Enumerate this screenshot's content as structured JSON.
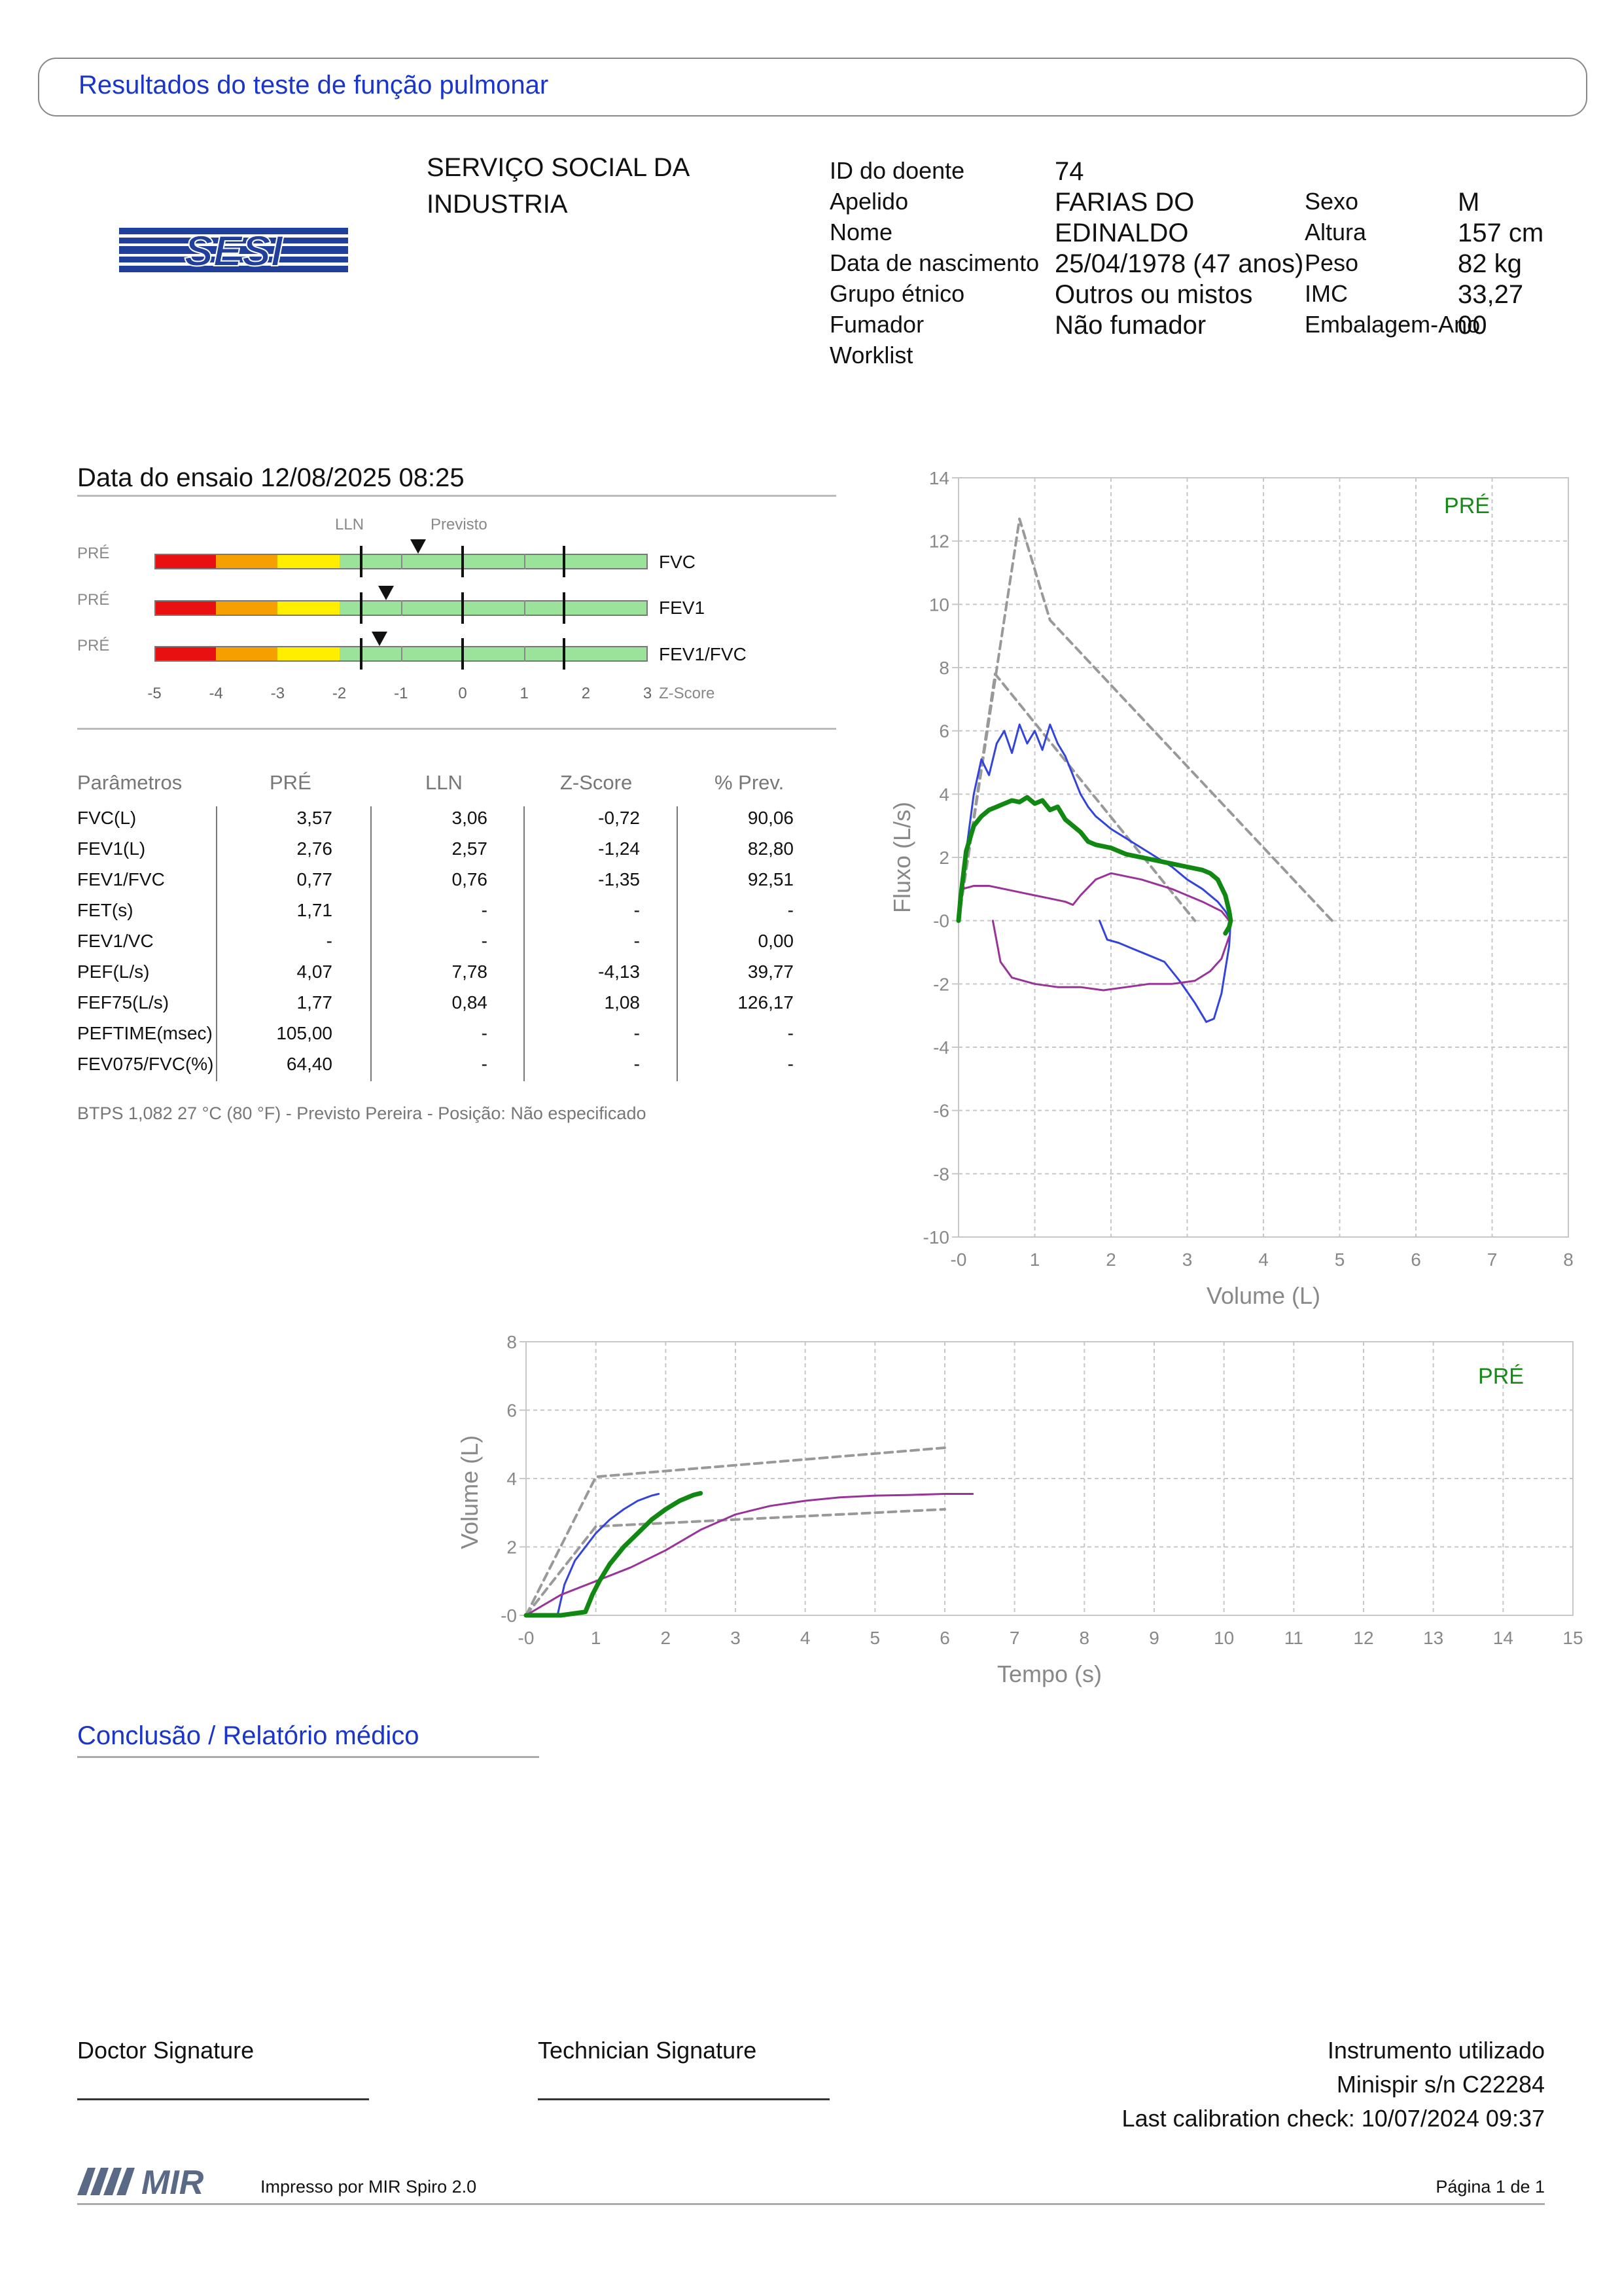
{
  "header": {
    "title": "Resultados do teste de função pulmonar"
  },
  "organization": {
    "logo_text": "SESI",
    "name_line1": "SERVIÇO SOCIAL DA",
    "name_line2": "INDUSTRIA"
  },
  "patient": {
    "id_label": "ID do doente",
    "id_value": "74",
    "surname_label": "Apelido",
    "surname_value": "FARIAS DO",
    "name_label": "Nome",
    "name_value": "EDINALDO",
    "dob_label": "Data de nascimento",
    "dob_value": "25/04/1978 (47 anos)",
    "ethnic_label": "Grupo étnico",
    "ethnic_value": "Outros ou mistos",
    "smoker_label": "Fumador",
    "smoker_value": "Não fumador",
    "worklist_label": "Worklist",
    "sex_label": "Sexo",
    "sex_value": "M",
    "height_label": "Altura",
    "height_value": "157 cm",
    "weight_label": "Peso",
    "weight_value": "82 kg",
    "bmi_label": "IMC",
    "bmi_value": "33,27",
    "pack_label": "Embalagem-Ano",
    "pack_value": "00"
  },
  "test": {
    "date_text": "Data do ensaio 12/08/2025 08:25"
  },
  "zscore": {
    "lln_label": "LLN",
    "predicted_label": "Previsto",
    "axis_label": "Z-Score",
    "ticks": [
      "-5",
      "-4",
      "-3",
      "-2",
      "-1",
      "0",
      "1",
      "2",
      "3"
    ],
    "rows": [
      {
        "tag": "PRÉ",
        "param": "FVC",
        "z": -0.72
      },
      {
        "tag": "PRÉ",
        "param": "FEV1",
        "z": -1.24
      },
      {
        "tag": "PRÉ",
        "param": "FEV1/FVC",
        "z": -1.35
      }
    ]
  },
  "table": {
    "headers": [
      "Parâmetros",
      "PRÉ",
      "LLN",
      "Z-Score",
      "% Prev."
    ],
    "rows": [
      [
        "FVC(L)",
        "3,57",
        "3,06",
        "-0,72",
        "90,06"
      ],
      [
        "FEV1(L)",
        "2,76",
        "2,57",
        "-1,24",
        "82,80"
      ],
      [
        "FEV1/FVC",
        "0,77",
        "0,76",
        "-1,35",
        "92,51"
      ],
      [
        "FET(s)",
        "1,71",
        "-",
        "-",
        "-"
      ],
      [
        "FEV1/VC",
        "-",
        "-",
        "-",
        "0,00"
      ],
      [
        "PEF(L/s)",
        "4,07",
        "7,78",
        "-4,13",
        "39,77"
      ],
      [
        "FEF75(L/s)",
        "1,77",
        "0,84",
        "1,08",
        "126,17"
      ],
      [
        "PEFTIME(msec)",
        "105,00",
        "-",
        "-",
        "-"
      ],
      [
        "FEV075/FVC(%)",
        "64,40",
        "-",
        "-",
        "-"
      ]
    ],
    "footnote": "BTPS 1,082 27 °C (80 °F) - Previsto Pereira - Posição: Não especificado"
  },
  "chart_data": [
    {
      "type": "line",
      "xlabel": "Volume (L)",
      "ylabel": "Fluxo (L/s)",
      "xlim": [
        0,
        8
      ],
      "ylim": [
        -10,
        14
      ],
      "xticks": [
        "-0",
        "1",
        "2",
        "3",
        "4",
        "5",
        "6",
        "7",
        "8"
      ],
      "yticks": [
        "14",
        "12",
        "10",
        "8",
        "6",
        "4",
        "2",
        "-0",
        "-2",
        "-4",
        "-6",
        "-8",
        "-10"
      ],
      "legend": "PRÉ",
      "grid": true,
      "series": [
        {
          "color": "#999999",
          "style": "dashed",
          "x": [
            0,
            0.8,
            1.2,
            4.9
          ],
          "y": [
            0,
            12.7,
            9.5,
            0
          ]
        },
        {
          "color": "#999999",
          "style": "dashed",
          "x": [
            0,
            0.48,
            3.1
          ],
          "y": [
            0,
            7.8,
            0
          ]
        },
        {
          "color": "#3344dd",
          "style": "solid",
          "x": [
            0,
            0.1,
            0.2,
            0.3,
            0.4,
            0.5,
            0.6,
            0.7,
            0.8,
            0.9,
            1.0,
            1.1,
            1.2,
            1.3,
            1.4,
            1.5,
            1.6,
            1.7,
            1.8,
            1.9,
            2.0,
            2.2,
            2.4,
            2.6,
            2.8,
            3.0,
            3.2,
            3.4,
            3.5,
            3.57
          ],
          "y": [
            0,
            2.2,
            4.0,
            5.1,
            4.6,
            5.6,
            6.0,
            5.3,
            6.2,
            5.6,
            6.0,
            5.4,
            6.2,
            5.6,
            5.2,
            4.6,
            4.0,
            3.6,
            3.3,
            3.1,
            2.9,
            2.6,
            2.3,
            2.0,
            1.7,
            1.3,
            1.0,
            0.6,
            0.3,
            0
          ]
        },
        {
          "color": "#3344dd",
          "style": "solid",
          "x": [
            1.85,
            1.95,
            2.1,
            2.3,
            2.5,
            2.7,
            2.9,
            3.1,
            3.25,
            3.35,
            3.45,
            3.55,
            3.57
          ],
          "y": [
            0,
            -0.6,
            -0.7,
            -0.9,
            -1.1,
            -1.3,
            -1.9,
            -2.6,
            -3.2,
            -3.1,
            -2.3,
            -0.8,
            0
          ]
        },
        {
          "color": "#993399",
          "style": "solid",
          "x": [
            0,
            0.05,
            0.2,
            0.4,
            0.6,
            0.8,
            1.0,
            1.2,
            1.4,
            1.5,
            1.6,
            1.8,
            2.0,
            2.4,
            2.8,
            3.2,
            3.45,
            3.55
          ],
          "y": [
            0,
            1.0,
            1.1,
            1.1,
            1.0,
            0.9,
            0.8,
            0.7,
            0.6,
            0.5,
            0.8,
            1.3,
            1.5,
            1.3,
            1.0,
            0.6,
            0.3,
            0
          ]
        },
        {
          "color": "#993399",
          "style": "solid",
          "x": [
            0.45,
            0.55,
            0.7,
            1.0,
            1.3,
            1.6,
            1.9,
            2.2,
            2.5,
            2.8,
            3.1,
            3.3,
            3.45,
            3.55
          ],
          "y": [
            0,
            -1.3,
            -1.8,
            -2.0,
            -2.1,
            -2.1,
            -2.2,
            -2.1,
            -2.0,
            -2.0,
            -1.9,
            -1.6,
            -1.2,
            -0.5
          ]
        },
        {
          "color": "#118811",
          "style": "bold",
          "x": [
            0,
            0.03,
            0.1,
            0.2,
            0.3,
            0.4,
            0.5,
            0.6,
            0.7,
            0.8,
            0.9,
            1.0,
            1.1,
            1.2,
            1.3,
            1.4,
            1.5,
            1.6,
            1.7,
            1.8,
            2.0,
            2.2,
            2.4,
            2.6,
            2.8,
            3.0,
            3.2,
            3.3,
            3.4,
            3.5,
            3.55,
            3.57,
            3.55,
            3.5
          ],
          "y": [
            0,
            0.8,
            2.2,
            3.0,
            3.3,
            3.5,
            3.6,
            3.7,
            3.8,
            3.75,
            3.9,
            3.7,
            3.8,
            3.5,
            3.6,
            3.2,
            3.0,
            2.8,
            2.5,
            2.4,
            2.3,
            2.1,
            2.0,
            1.9,
            1.8,
            1.7,
            1.6,
            1.5,
            1.3,
            0.8,
            0.3,
            0,
            -0.2,
            -0.4
          ]
        }
      ]
    },
    {
      "type": "line",
      "xlabel": "Tempo (s)",
      "ylabel": "Volume (L)",
      "xlim": [
        0,
        15
      ],
      "ylim": [
        0,
        8
      ],
      "xticks": [
        "-0",
        "1",
        "2",
        "3",
        "4",
        "5",
        "6",
        "7",
        "8",
        "9",
        "10",
        "11",
        "12",
        "13",
        "14",
        "15"
      ],
      "yticks": [
        "8",
        "6",
        "4",
        "2",
        "-0"
      ],
      "legend": "PRÉ",
      "grid": true,
      "series": [
        {
          "color": "#999999",
          "style": "dashed",
          "x": [
            0,
            1.0,
            6.0
          ],
          "y": [
            0,
            4.05,
            4.9
          ]
        },
        {
          "color": "#999999",
          "style": "dashed",
          "x": [
            0,
            1.0,
            6.0
          ],
          "y": [
            0,
            2.6,
            3.1
          ]
        },
        {
          "color": "#3344dd",
          "style": "solid",
          "x": [
            0.45,
            0.55,
            0.7,
            0.85,
            1.0,
            1.2,
            1.4,
            1.6,
            1.8,
            1.9
          ],
          "y": [
            0,
            0.9,
            1.6,
            2.0,
            2.4,
            2.8,
            3.1,
            3.35,
            3.5,
            3.55
          ]
        },
        {
          "color": "#993399",
          "style": "solid",
          "x": [
            0,
            0.5,
            1.0,
            1.5,
            2.0,
            2.5,
            3.0,
            3.5,
            4.0,
            4.5,
            5.0,
            5.5,
            6.0,
            6.4
          ],
          "y": [
            0,
            0.6,
            1.0,
            1.4,
            1.9,
            2.5,
            2.95,
            3.2,
            3.35,
            3.45,
            3.5,
            3.52,
            3.55,
            3.55
          ]
        },
        {
          "color": "#118811",
          "style": "bold",
          "x": [
            0,
            0.5,
            0.85,
            0.95,
            1.05,
            1.2,
            1.4,
            1.6,
            1.8,
            2.0,
            2.2,
            2.4,
            2.5
          ],
          "y": [
            0,
            0,
            0.1,
            0.6,
            1.0,
            1.5,
            2.0,
            2.4,
            2.8,
            3.1,
            3.35,
            3.52,
            3.57
          ]
        }
      ]
    }
  ],
  "conclusion": {
    "title": "Conclusão / Relatório médico"
  },
  "signatures": {
    "doctor": "Doctor Signature",
    "technician": "Technician Signature"
  },
  "instrument": {
    "label": "Instrumento utilizado",
    "device": "Minispir s/n C22284",
    "calibration": "Last calibration check: 10/07/2024 09:37"
  },
  "footer": {
    "brand": "MIR",
    "printed_by": "Impresso por MIR Spiro 2.0",
    "page": "Página 1 de 1"
  }
}
